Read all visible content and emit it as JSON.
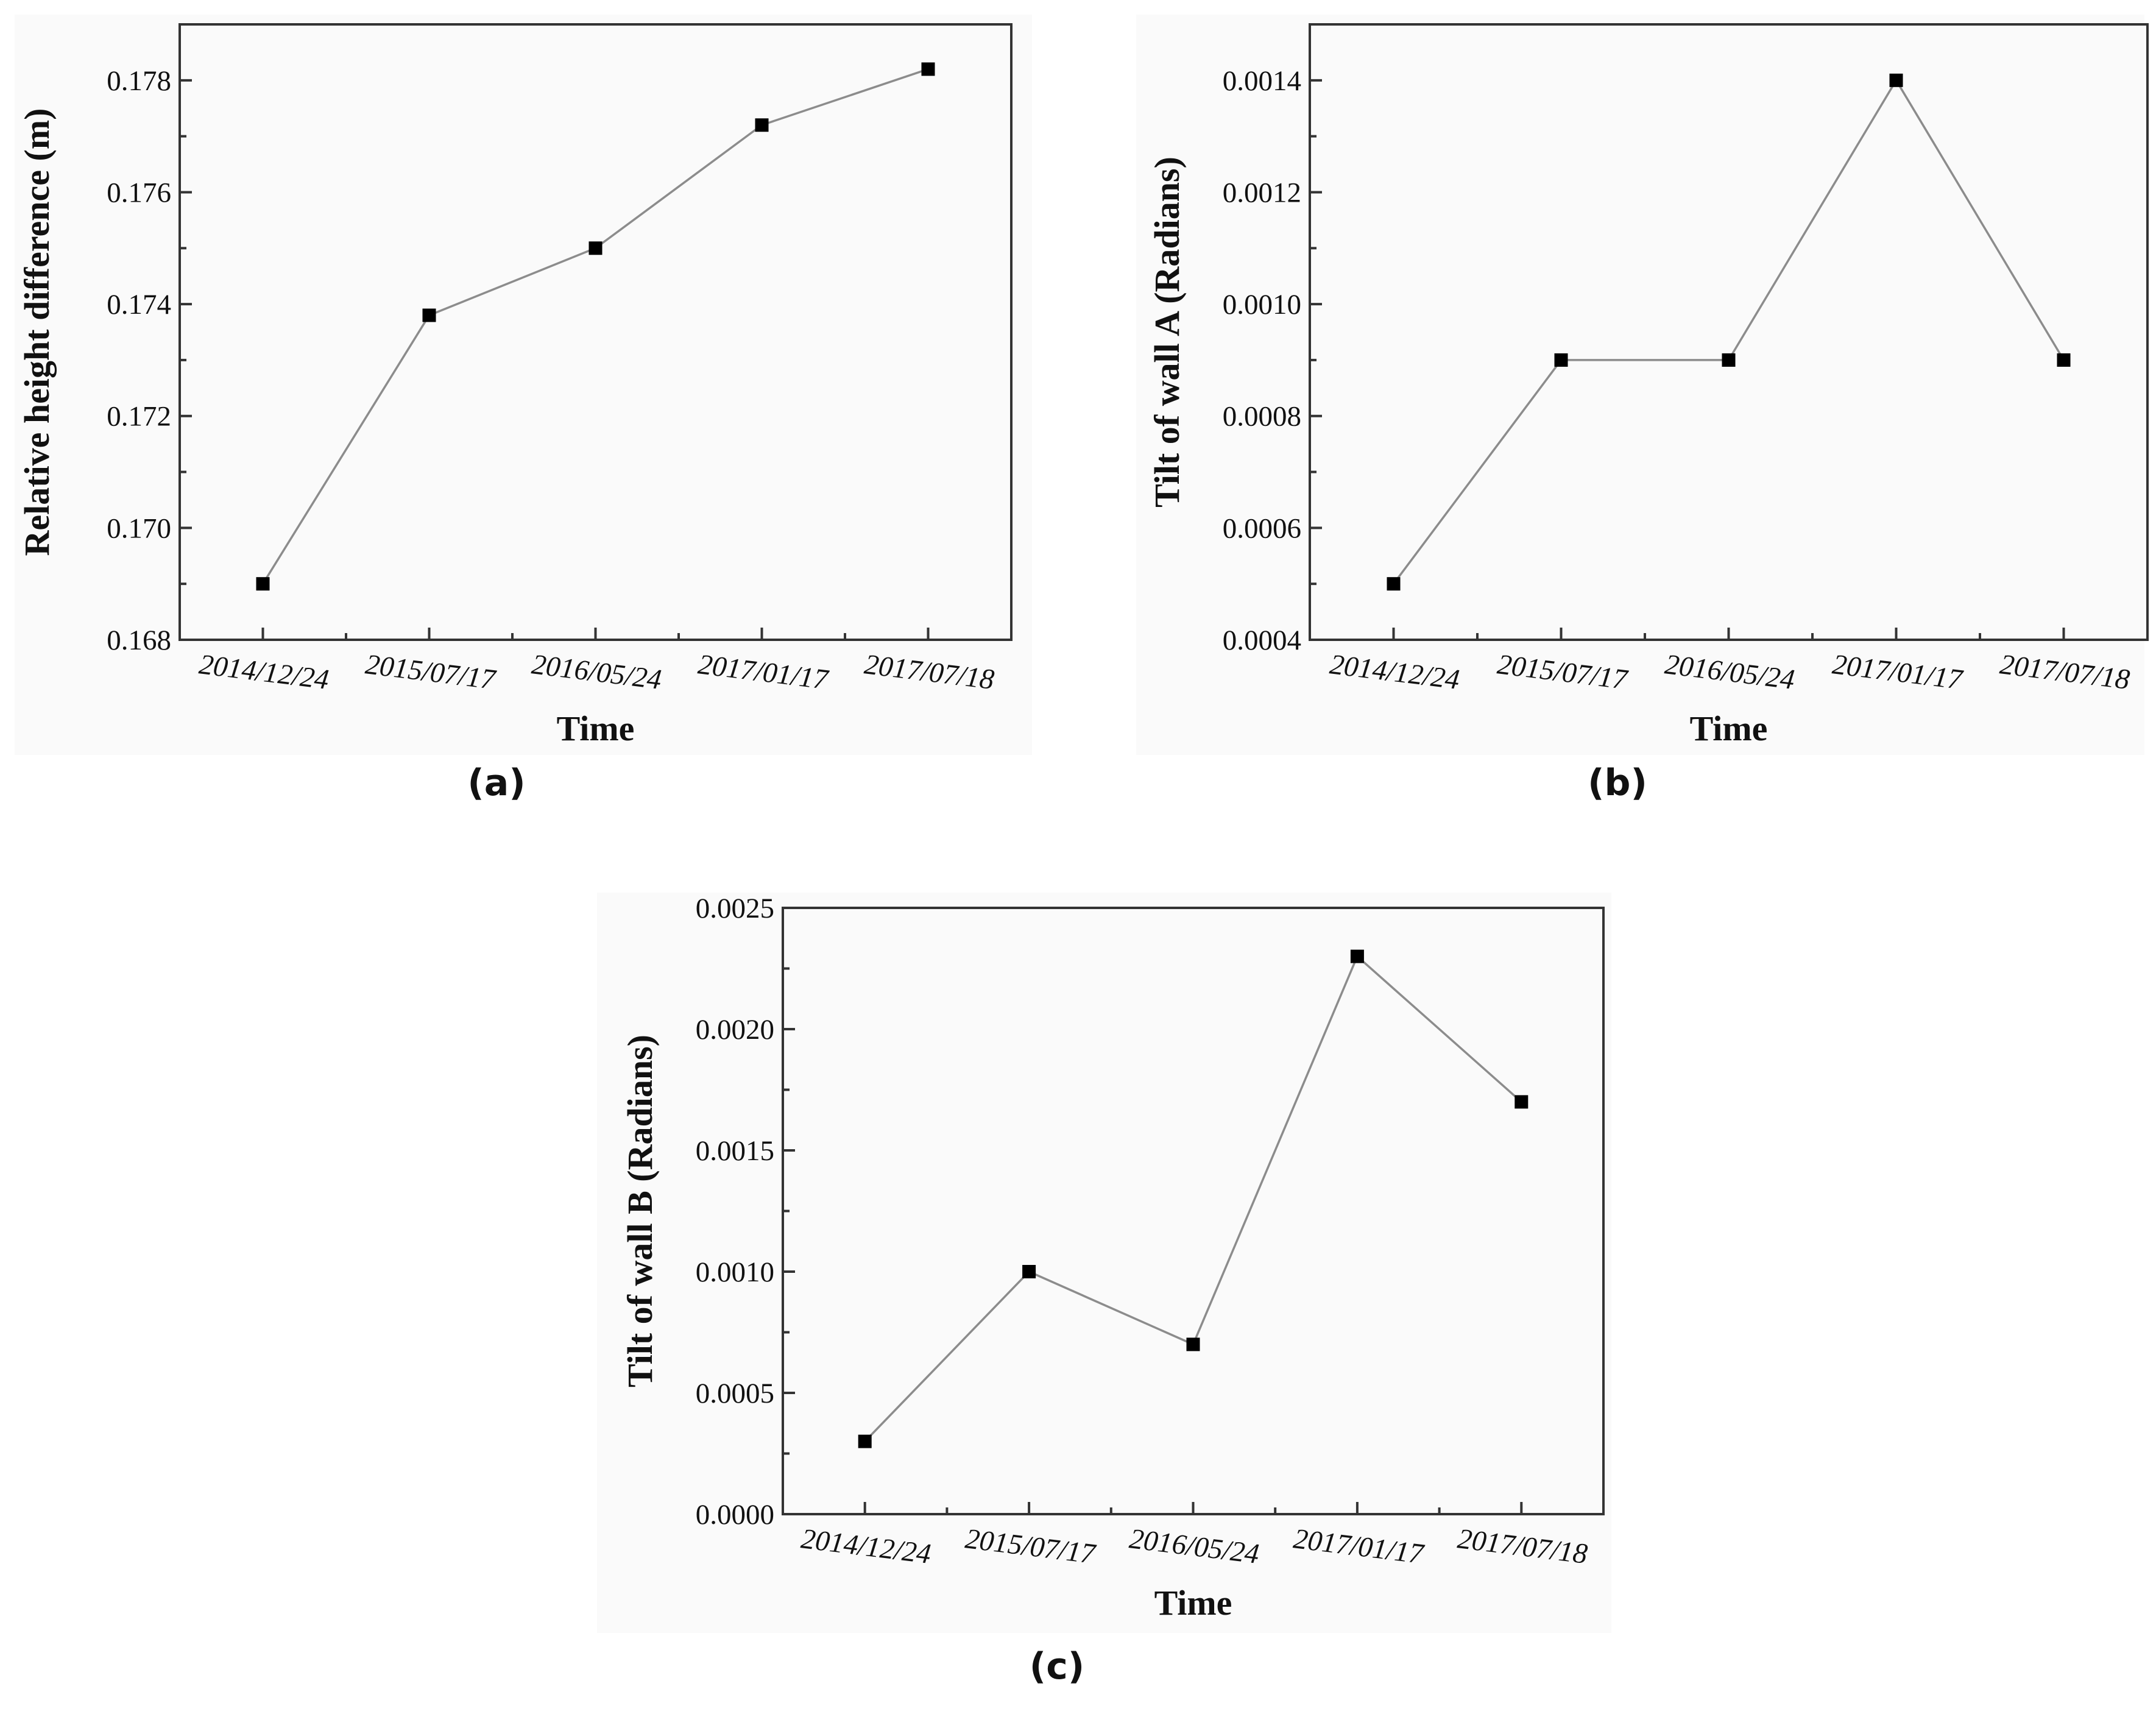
{
  "chart_data": [
    {
      "type": "line",
      "caption": "(a)",
      "categories": [
        "2014/12/24",
        "2015/07/17",
        "2016/05/24",
        "2017/01/17",
        "2017/07/18"
      ],
      "series": [
        {
          "values": [
            0.169,
            0.1738,
            0.175,
            0.1772,
            0.1782
          ]
        }
      ],
      "xlabel": "Time",
      "ylabel": "Relative height difference (m)",
      "ylim": [
        0.168,
        0.179
      ],
      "yticks": [
        "0.168",
        "0.170",
        "0.172",
        "0.174",
        "0.176",
        "0.178"
      ],
      "marker": "square",
      "line_color": "#8c8c8c",
      "marker_color": "#000000",
      "grid": false,
      "legend": "none"
    },
    {
      "type": "line",
      "caption": "(b)",
      "categories": [
        "2014/12/24",
        "2015/07/17",
        "2016/05/24",
        "2017/01/17",
        "2017/07/18"
      ],
      "series": [
        {
          "values": [
            0.0005,
            0.0009,
            0.0009,
            0.0014,
            0.0009
          ]
        }
      ],
      "xlabel": "Time",
      "ylabel": "Tilt of wall A (Radians)",
      "ylim": [
        0.0004,
        0.0015
      ],
      "yticks": [
        "0.0004",
        "0.0006",
        "0.0008",
        "0.0010",
        "0.0012",
        "0.0014"
      ],
      "marker": "square",
      "line_color": "#8c8c8c",
      "marker_color": "#000000",
      "grid": false,
      "legend": "none"
    },
    {
      "type": "line",
      "caption": "(c)",
      "categories": [
        "2014/12/24",
        "2015/07/17",
        "2016/05/24",
        "2017/01/17",
        "2017/07/18"
      ],
      "series": [
        {
          "values": [
            0.0003,
            0.001,
            0.0007,
            0.0023,
            0.0017
          ]
        }
      ],
      "xlabel": "Time",
      "ylabel": "Tilt of wall B (Radians)",
      "ylim": [
        0.0,
        0.0025
      ],
      "yticks": [
        "0.0000",
        "0.0005",
        "0.0010",
        "0.0015",
        "0.0020",
        "0.0025"
      ],
      "marker": "square",
      "line_color": "#8c8c8c",
      "marker_color": "#000000",
      "grid": false,
      "legend": "none"
    }
  ]
}
